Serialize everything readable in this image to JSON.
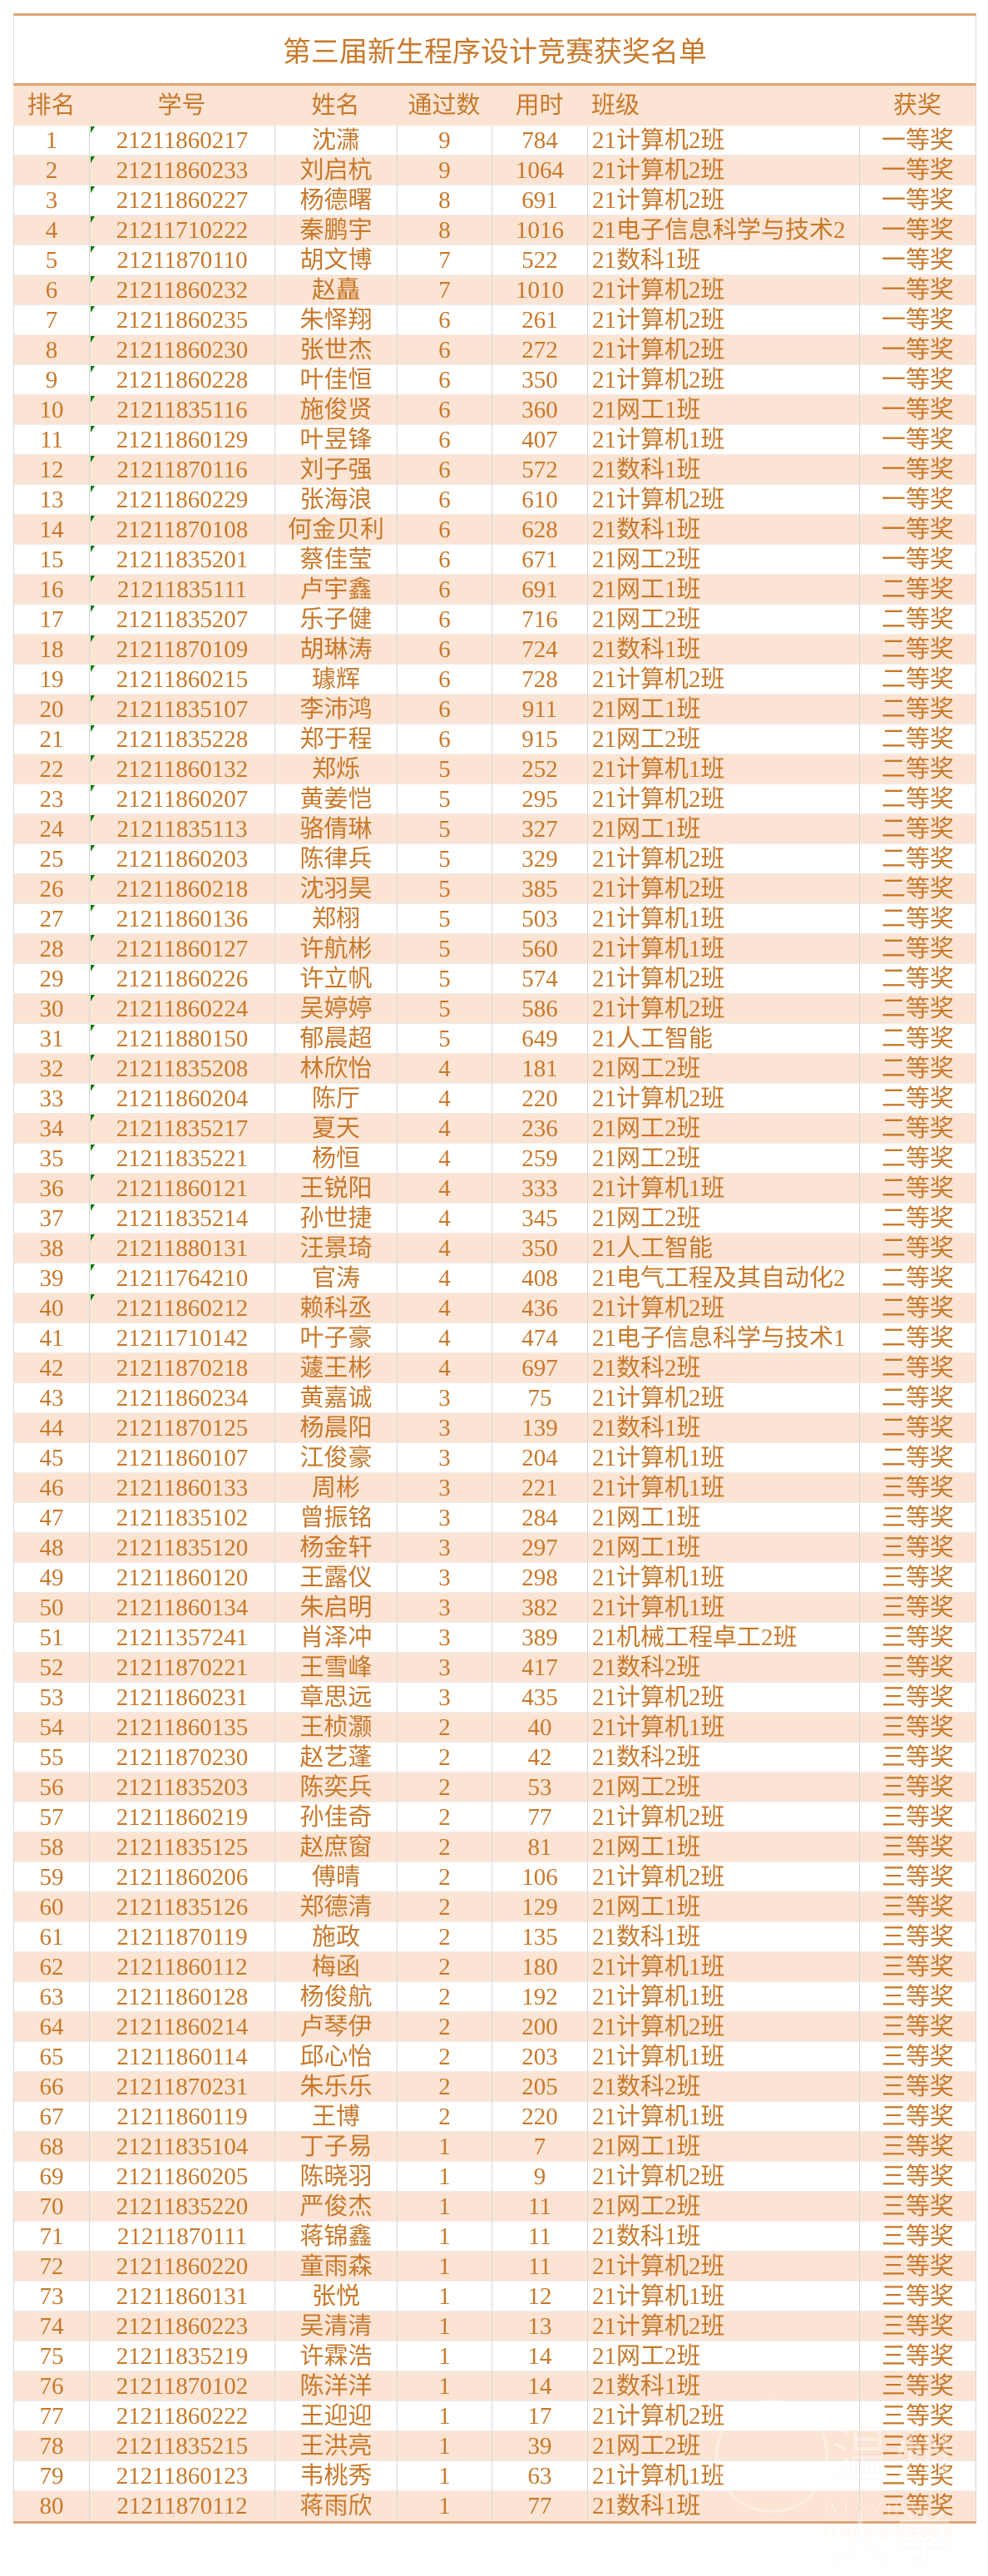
{
  "title": "第三届新生程序设计竞赛获奖名单",
  "columns": [
    "排名",
    "学号",
    "姓名",
    "通过数",
    "用时",
    "班级",
    "获奖"
  ],
  "colors": {
    "text": "#c8782a",
    "stripe": "#fce4d4",
    "rule": "#e0a472",
    "flag": "#0a7a0a"
  },
  "watermark": {
    "name": "温州大学",
    "english": "WENZHOU UNIVERSITY"
  },
  "flagged_rows_upto": 40,
  "rows": [
    [
      "1",
      "21211860217",
      "沈潇",
      "9",
      "784",
      "21计算机2班",
      "一等奖"
    ],
    [
      "2",
      "21211860233",
      "刘启杭",
      "9",
      "1064",
      "21计算机2班",
      "一等奖"
    ],
    [
      "3",
      "21211860227",
      "杨德曙",
      "8",
      "691",
      "21计算机2班",
      "一等奖"
    ],
    [
      "4",
      "21211710222",
      "秦鹏宇",
      "8",
      "1016",
      "21电子信息科学与技术2",
      "一等奖"
    ],
    [
      "5",
      "21211870110",
      "胡文博",
      "7",
      "522",
      "21数科1班",
      "一等奖"
    ],
    [
      "6",
      "21211860232",
      "赵矗",
      "7",
      "1010",
      "21计算机2班",
      "一等奖"
    ],
    [
      "7",
      "21211860235",
      "朱怿翔",
      "6",
      "261",
      "21计算机2班",
      "一等奖"
    ],
    [
      "8",
      "21211860230",
      "张世杰",
      "6",
      "272",
      "21计算机2班",
      "一等奖"
    ],
    [
      "9",
      "21211860228",
      "叶佳恒",
      "6",
      "350",
      "21计算机2班",
      "一等奖"
    ],
    [
      "10",
      "21211835116",
      "施俊贤",
      "6",
      "360",
      "21网工1班",
      "一等奖"
    ],
    [
      "11",
      "21211860129",
      "叶昱锋",
      "6",
      "407",
      "21计算机1班",
      "一等奖"
    ],
    [
      "12",
      "21211870116",
      "刘子强",
      "6",
      "572",
      "21数科1班",
      "一等奖"
    ],
    [
      "13",
      "21211860229",
      "张海浪",
      "6",
      "610",
      "21计算机2班",
      "一等奖"
    ],
    [
      "14",
      "21211870108",
      "何金贝利",
      "6",
      "628",
      "21数科1班",
      "一等奖"
    ],
    [
      "15",
      "21211835201",
      "蔡佳莹",
      "6",
      "671",
      "21网工2班",
      "一等奖"
    ],
    [
      "16",
      "21211835111",
      "卢宇鑫",
      "6",
      "691",
      "21网工1班",
      "二等奖"
    ],
    [
      "17",
      "21211835207",
      "乐子健",
      "6",
      "716",
      "21网工2班",
      "二等奖"
    ],
    [
      "18",
      "21211870109",
      "胡琳涛",
      "6",
      "724",
      "21数科1班",
      "二等奖"
    ],
    [
      "19",
      "21211860215",
      "璩辉",
      "6",
      "728",
      "21计算机2班",
      "二等奖"
    ],
    [
      "20",
      "21211835107",
      "李沛鸿",
      "6",
      "911",
      "21网工1班",
      "二等奖"
    ],
    [
      "21",
      "21211835228",
      "郑于程",
      "6",
      "915",
      "21网工2班",
      "二等奖"
    ],
    [
      "22",
      "21211860132",
      "郑烁",
      "5",
      "252",
      "21计算机1班",
      "二等奖"
    ],
    [
      "23",
      "21211860207",
      "黄姜恺",
      "5",
      "295",
      "21计算机2班",
      "二等奖"
    ],
    [
      "24",
      "21211835113",
      "骆倩琳",
      "5",
      "327",
      "21网工1班",
      "二等奖"
    ],
    [
      "25",
      "21211860203",
      "陈律兵",
      "5",
      "329",
      "21计算机2班",
      "二等奖"
    ],
    [
      "26",
      "21211860218",
      "沈羽昊",
      "5",
      "385",
      "21计算机2班",
      "二等奖"
    ],
    [
      "27",
      "21211860136",
      "郑栩",
      "5",
      "503",
      "21计算机1班",
      "二等奖"
    ],
    [
      "28",
      "21211860127",
      "许航彬",
      "5",
      "560",
      "21计算机1班",
      "二等奖"
    ],
    [
      "29",
      "21211860226",
      "许立帆",
      "5",
      "574",
      "21计算机2班",
      "二等奖"
    ],
    [
      "30",
      "21211860224",
      "吴婷婷",
      "5",
      "586",
      "21计算机2班",
      "二等奖"
    ],
    [
      "31",
      "21211880150",
      "郁晨超",
      "5",
      "649",
      "21人工智能",
      "二等奖"
    ],
    [
      "32",
      "21211835208",
      "林欣怡",
      "4",
      "181",
      "21网工2班",
      "二等奖"
    ],
    [
      "33",
      "21211860204",
      "陈厅",
      "4",
      "220",
      "21计算机2班",
      "二等奖"
    ],
    [
      "34",
      "21211835217",
      "夏天",
      "4",
      "236",
      "21网工2班",
      "二等奖"
    ],
    [
      "35",
      "21211835221",
      "杨恒",
      "4",
      "259",
      "21网工2班",
      "二等奖"
    ],
    [
      "36",
      "21211860121",
      "王锐阳",
      "4",
      "333",
      "21计算机1班",
      "二等奖"
    ],
    [
      "37",
      "21211835214",
      "孙世捷",
      "4",
      "345",
      "21网工2班",
      "二等奖"
    ],
    [
      "38",
      "21211880131",
      "汪景琦",
      "4",
      "350",
      "21人工智能",
      "二等奖"
    ],
    [
      "39",
      "21211764210",
      "官涛",
      "4",
      "408",
      "21电气工程及其自动化2",
      "二等奖"
    ],
    [
      "40",
      "21211860212",
      "赖科丞",
      "4",
      "436",
      "21计算机2班",
      "二等奖"
    ],
    [
      "41",
      "21211710142",
      "叶子豪",
      "4",
      "474",
      "21电子信息科学与技术1",
      "二等奖"
    ],
    [
      "42",
      "21211870218",
      "蘧王彬",
      "4",
      "697",
      "21数科2班",
      "二等奖"
    ],
    [
      "43",
      "21211860234",
      "黄嘉诚",
      "3",
      "75",
      "21计算机2班",
      "二等奖"
    ],
    [
      "44",
      "21211870125",
      "杨晨阳",
      "3",
      "139",
      "21数科1班",
      "二等奖"
    ],
    [
      "45",
      "21211860107",
      "江俊豪",
      "3",
      "204",
      "21计算机1班",
      "二等奖"
    ],
    [
      "46",
      "21211860133",
      "周彬",
      "3",
      "221",
      "21计算机1班",
      "三等奖"
    ],
    [
      "47",
      "21211835102",
      "曾振铭",
      "3",
      "284",
      "21网工1班",
      "三等奖"
    ],
    [
      "48",
      "21211835120",
      "杨金轩",
      "3",
      "297",
      "21网工1班",
      "三等奖"
    ],
    [
      "49",
      "21211860120",
      "王露仪",
      "3",
      "298",
      "21计算机1班",
      "三等奖"
    ],
    [
      "50",
      "21211860134",
      "朱启明",
      "3",
      "382",
      "21计算机1班",
      "三等奖"
    ],
    [
      "51",
      "21211357241",
      "肖泽冲",
      "3",
      "389",
      "21机械工程卓工2班",
      "三等奖"
    ],
    [
      "52",
      "21211870221",
      "王雪峰",
      "3",
      "417",
      "21数科2班",
      "三等奖"
    ],
    [
      "53",
      "21211860231",
      "章思远",
      "3",
      "435",
      "21计算机2班",
      "三等奖"
    ],
    [
      "54",
      "21211860135",
      "王桢灏",
      "2",
      "40",
      "21计算机1班",
      "三等奖"
    ],
    [
      "55",
      "21211870230",
      "赵艺蓬",
      "2",
      "42",
      "21数科2班",
      "三等奖"
    ],
    [
      "56",
      "21211835203",
      "陈奕兵",
      "2",
      "53",
      "21网工2班",
      "三等奖"
    ],
    [
      "57",
      "21211860219",
      "孙佳奇",
      "2",
      "77",
      "21计算机2班",
      "三等奖"
    ],
    [
      "58",
      "21211835125",
      "赵庶窗",
      "2",
      "81",
      "21网工1班",
      "三等奖"
    ],
    [
      "59",
      "21211860206",
      "傅晴",
      "2",
      "106",
      "21计算机2班",
      "三等奖"
    ],
    [
      "60",
      "21211835126",
      "郑德清",
      "2",
      "129",
      "21网工1班",
      "三等奖"
    ],
    [
      "61",
      "21211870119",
      "施政",
      "2",
      "135",
      "21数科1班",
      "三等奖"
    ],
    [
      "62",
      "21211860112",
      "梅函",
      "2",
      "180",
      "21计算机1班",
      "三等奖"
    ],
    [
      "63",
      "21211860128",
      "杨俊航",
      "2",
      "192",
      "21计算机1班",
      "三等奖"
    ],
    [
      "64",
      "21211860214",
      "卢琴伊",
      "2",
      "200",
      "21计算机2班",
      "三等奖"
    ],
    [
      "65",
      "21211860114",
      "邱心怡",
      "2",
      "203",
      "21计算机1班",
      "三等奖"
    ],
    [
      "66",
      "21211870231",
      "朱乐乐",
      "2",
      "205",
      "21数科2班",
      "三等奖"
    ],
    [
      "67",
      "21211860119",
      "王博",
      "2",
      "220",
      "21计算机1班",
      "三等奖"
    ],
    [
      "68",
      "21211835104",
      "丁子易",
      "1",
      "7",
      "21网工1班",
      "三等奖"
    ],
    [
      "69",
      "21211860205",
      "陈晓羽",
      "1",
      "9",
      "21计算机2班",
      "三等奖"
    ],
    [
      "70",
      "21211835220",
      "严俊杰",
      "1",
      "11",
      "21网工2班",
      "三等奖"
    ],
    [
      "71",
      "21211870111",
      "蒋锦鑫",
      "1",
      "11",
      "21数科1班",
      "三等奖"
    ],
    [
      "72",
      "21211860220",
      "童雨森",
      "1",
      "11",
      "21计算机2班",
      "三等奖"
    ],
    [
      "73",
      "21211860131",
      "张悦",
      "1",
      "12",
      "21计算机1班",
      "三等奖"
    ],
    [
      "74",
      "21211860223",
      "吴清清",
      "1",
      "13",
      "21计算机2班",
      "三等奖"
    ],
    [
      "75",
      "21211835219",
      "许霖浩",
      "1",
      "14",
      "21网工2班",
      "三等奖"
    ],
    [
      "76",
      "21211870102",
      "陈洋洋",
      "1",
      "14",
      "21数科1班",
      "三等奖"
    ],
    [
      "77",
      "21211860222",
      "王迎迎",
      "1",
      "17",
      "21计算机2班",
      "三等奖"
    ],
    [
      "78",
      "21211835215",
      "王洪亮",
      "1",
      "39",
      "21网工2班",
      "三等奖"
    ],
    [
      "79",
      "21211860123",
      "韦桃秀",
      "1",
      "63",
      "21计算机1班",
      "三等奖"
    ],
    [
      "80",
      "21211870112",
      "蒋雨欣",
      "1",
      "77",
      "21数科1班",
      "三等奖"
    ]
  ]
}
